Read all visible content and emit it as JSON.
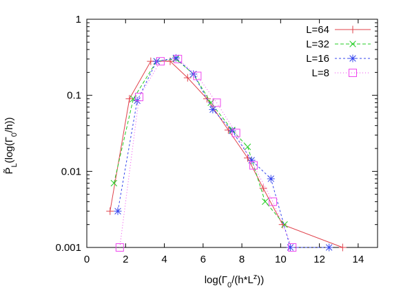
{
  "chart_data": {
    "type": "line",
    "xlabel": "log(Γ0/(h*L^z))",
    "ylabel": "P̃L(log(Γ0/h))",
    "xlim": [
      0,
      15
    ],
    "ylim": [
      0.001,
      1
    ],
    "yscale": "log",
    "x_ticks": [
      "0",
      "2",
      "4",
      "6",
      "8",
      "10",
      "12",
      "14"
    ],
    "y_ticks": [
      "0.001",
      "0.01",
      "0.1",
      "1"
    ],
    "grid": false,
    "legend_position": "top-right",
    "series": [
      {
        "name": "L=64",
        "color": "#e0404a",
        "dash": "solid",
        "marker": "plus",
        "points": [
          [
            1.2,
            0.003
          ],
          [
            2.2,
            0.09
          ],
          [
            3.3,
            0.28
          ],
          [
            4.3,
            0.28
          ],
          [
            5.2,
            0.17
          ],
          [
            6.2,
            0.09
          ],
          [
            7.3,
            0.035
          ],
          [
            8.3,
            0.015
          ],
          [
            9.1,
            0.006
          ],
          [
            10.1,
            0.002
          ],
          [
            13.2,
            0.001
          ]
        ]
      },
      {
        "name": "L=32",
        "color": "#22cc22",
        "dash": "5,3",
        "marker": "x",
        "points": [
          [
            1.4,
            0.007
          ],
          [
            2.4,
            0.09
          ],
          [
            3.6,
            0.28
          ],
          [
            4.6,
            0.3
          ],
          [
            5.5,
            0.19
          ],
          [
            6.4,
            0.08
          ],
          [
            7.5,
            0.035
          ],
          [
            8.3,
            0.021
          ],
          [
            9.2,
            0.004
          ],
          [
            10.2,
            0.002
          ]
        ]
      },
      {
        "name": "L=16",
        "color": "#3344ee",
        "dash": "3,3",
        "marker": "star",
        "points": [
          [
            1.6,
            0.003
          ],
          [
            2.6,
            0.085
          ],
          [
            3.6,
            0.28
          ],
          [
            4.6,
            0.31
          ],
          [
            5.5,
            0.19
          ],
          [
            6.5,
            0.065
          ],
          [
            7.5,
            0.034
          ],
          [
            8.5,
            0.014
          ],
          [
            9.5,
            0.008
          ],
          [
            10.5,
            0.001
          ],
          [
            12.5,
            0.001
          ]
        ]
      },
      {
        "name": "L=8",
        "color": "#ee44ee",
        "dash": "1,3",
        "marker": "square",
        "points": [
          [
            1.7,
            0.001
          ],
          [
            2.7,
            0.095
          ],
          [
            3.8,
            0.28
          ],
          [
            4.7,
            0.3
          ],
          [
            5.7,
            0.18
          ],
          [
            6.7,
            0.08
          ],
          [
            7.7,
            0.032
          ],
          [
            8.6,
            0.012
          ],
          [
            9.6,
            0.004
          ],
          [
            10.6,
            0.001
          ]
        ]
      }
    ]
  }
}
